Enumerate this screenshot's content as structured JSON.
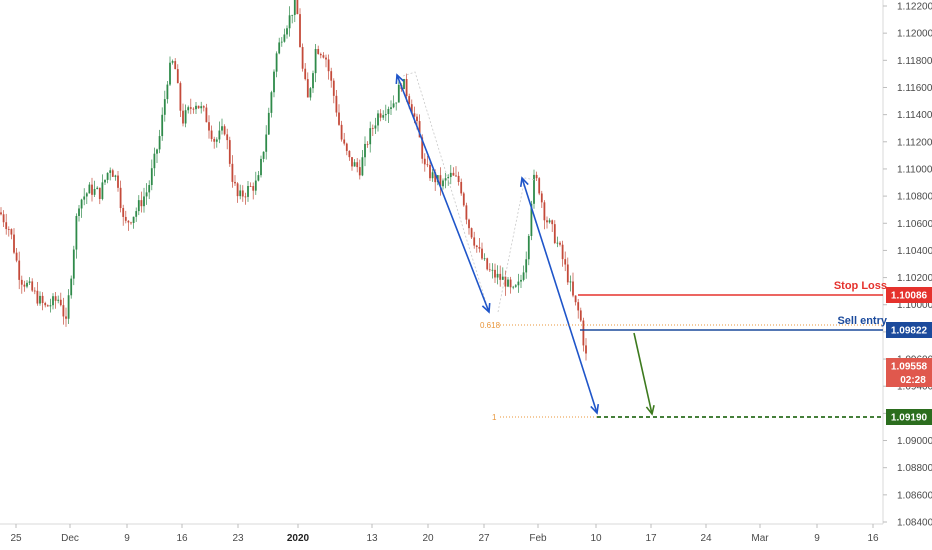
{
  "chart_data": {
    "type": "candlestick",
    "y_axis": {
      "position": "right",
      "ticks": [
        "1.12200",
        "1.12000",
        "1.11800",
        "1.11600",
        "1.11400",
        "1.11200",
        "1.11000",
        "1.10800",
        "1.10600",
        "1.10400",
        "1.10200",
        "1.10000",
        "1.09800",
        "1.09600",
        "1.09400",
        "1.09200",
        "1.09000",
        "1.08800",
        "1.08600",
        "1.08400"
      ],
      "ylim": [
        1.084,
        1.1228
      ]
    },
    "x_axis": {
      "ticks": [
        {
          "label": "25",
          "bold": false
        },
        {
          "label": "Dec",
          "bold": false
        },
        {
          "label": "9",
          "bold": false
        },
        {
          "label": "16",
          "bold": false
        },
        {
          "label": "23",
          "bold": false
        },
        {
          "label": "2020",
          "bold": true
        },
        {
          "label": "13",
          "bold": false
        },
        {
          "label": "20",
          "bold": false
        },
        {
          "label": "27",
          "bold": false
        },
        {
          "label": "Feb",
          "bold": false
        },
        {
          "label": "10",
          "bold": false
        },
        {
          "label": "17",
          "bold": false
        },
        {
          "label": "24",
          "bold": false
        },
        {
          "label": "Mar",
          "bold": false
        },
        {
          "label": "9",
          "bold": false
        },
        {
          "label": "16",
          "bold": false
        }
      ]
    },
    "price_path": [
      [
        0,
        1.1068
      ],
      [
        10,
        1.1055
      ],
      [
        20,
        1.102
      ],
      [
        30,
        1.1012
      ],
      [
        45,
        1.0998
      ],
      [
        60,
        1.1005
      ],
      [
        66,
        1.0985
      ],
      [
        72,
        1.103
      ],
      [
        78,
        1.1075
      ],
      [
        90,
        1.1085
      ],
      [
        100,
        1.1082
      ],
      [
        110,
        1.1102
      ],
      [
        118,
        1.109
      ],
      [
        124,
        1.1058
      ],
      [
        135,
        1.1068
      ],
      [
        148,
        1.1085
      ],
      [
        160,
        1.1125
      ],
      [
        168,
        1.117
      ],
      [
        174,
        1.118
      ],
      [
        182,
        1.1135
      ],
      [
        195,
        1.115
      ],
      [
        205,
        1.114
      ],
      [
        215,
        1.112
      ],
      [
        225,
        1.113
      ],
      [
        232,
        1.1095
      ],
      [
        238,
        1.1078
      ],
      [
        248,
        1.1085
      ],
      [
        258,
        1.109
      ],
      [
        268,
        1.1135
      ],
      [
        275,
        1.118
      ],
      [
        283,
        1.1202
      ],
      [
        290,
        1.1212
      ],
      [
        296,
        1.1225
      ],
      [
        302,
        1.1175
      ],
      [
        308,
        1.115
      ],
      [
        316,
        1.119
      ],
      [
        325,
        1.1185
      ],
      [
        335,
        1.115
      ],
      [
        342,
        1.112
      ],
      [
        350,
        1.1105
      ],
      [
        360,
        1.11
      ],
      [
        368,
        1.1122
      ],
      [
        378,
        1.114
      ],
      [
        385,
        1.1145
      ],
      [
        395,
        1.115
      ],
      [
        402,
        1.1165
      ],
      [
        410,
        1.115
      ],
      [
        418,
        1.1128
      ],
      [
        425,
        1.11
      ],
      [
        432,
        1.1095
      ],
      [
        442,
        1.1088
      ],
      [
        450,
        1.1095
      ],
      [
        460,
        1.109
      ],
      [
        468,
        1.106
      ],
      [
        478,
        1.104
      ],
      [
        488,
        1.1025
      ],
      [
        498,
        1.102
      ],
      [
        505,
        1.1018
      ],
      [
        512,
        1.1008
      ],
      [
        520,
        1.1015
      ],
      [
        527,
        1.104
      ],
      [
        533,
        1.1092
      ],
      [
        538,
        1.109
      ],
      [
        545,
        1.1065
      ],
      [
        552,
        1.1055
      ],
      [
        560,
        1.104
      ],
      [
        568,
        1.102
      ],
      [
        574,
        1.1002
      ],
      [
        580,
        1.0992
      ],
      [
        585,
        1.0965
      ],
      [
        588,
        1.0956
      ]
    ],
    "levels": [
      {
        "name": "Stop Loss",
        "value": "1.10086",
        "color": "#e5322d"
      },
      {
        "name": "Sell entry",
        "value": "1.09822",
        "color": "#1b4a9c"
      },
      {
        "name": "",
        "value": "1.09190",
        "color": "#2b6d1e"
      }
    ],
    "current_price": {
      "value": "1.09558",
      "countdown": "02:28",
      "color": "#e0584d"
    },
    "fib_labels": [
      "0.618",
      "1"
    ],
    "annotation_colors": {
      "arrows": "#1f55c9",
      "target_arrow": "#3d7a1e",
      "fib": "#e8953a"
    }
  }
}
